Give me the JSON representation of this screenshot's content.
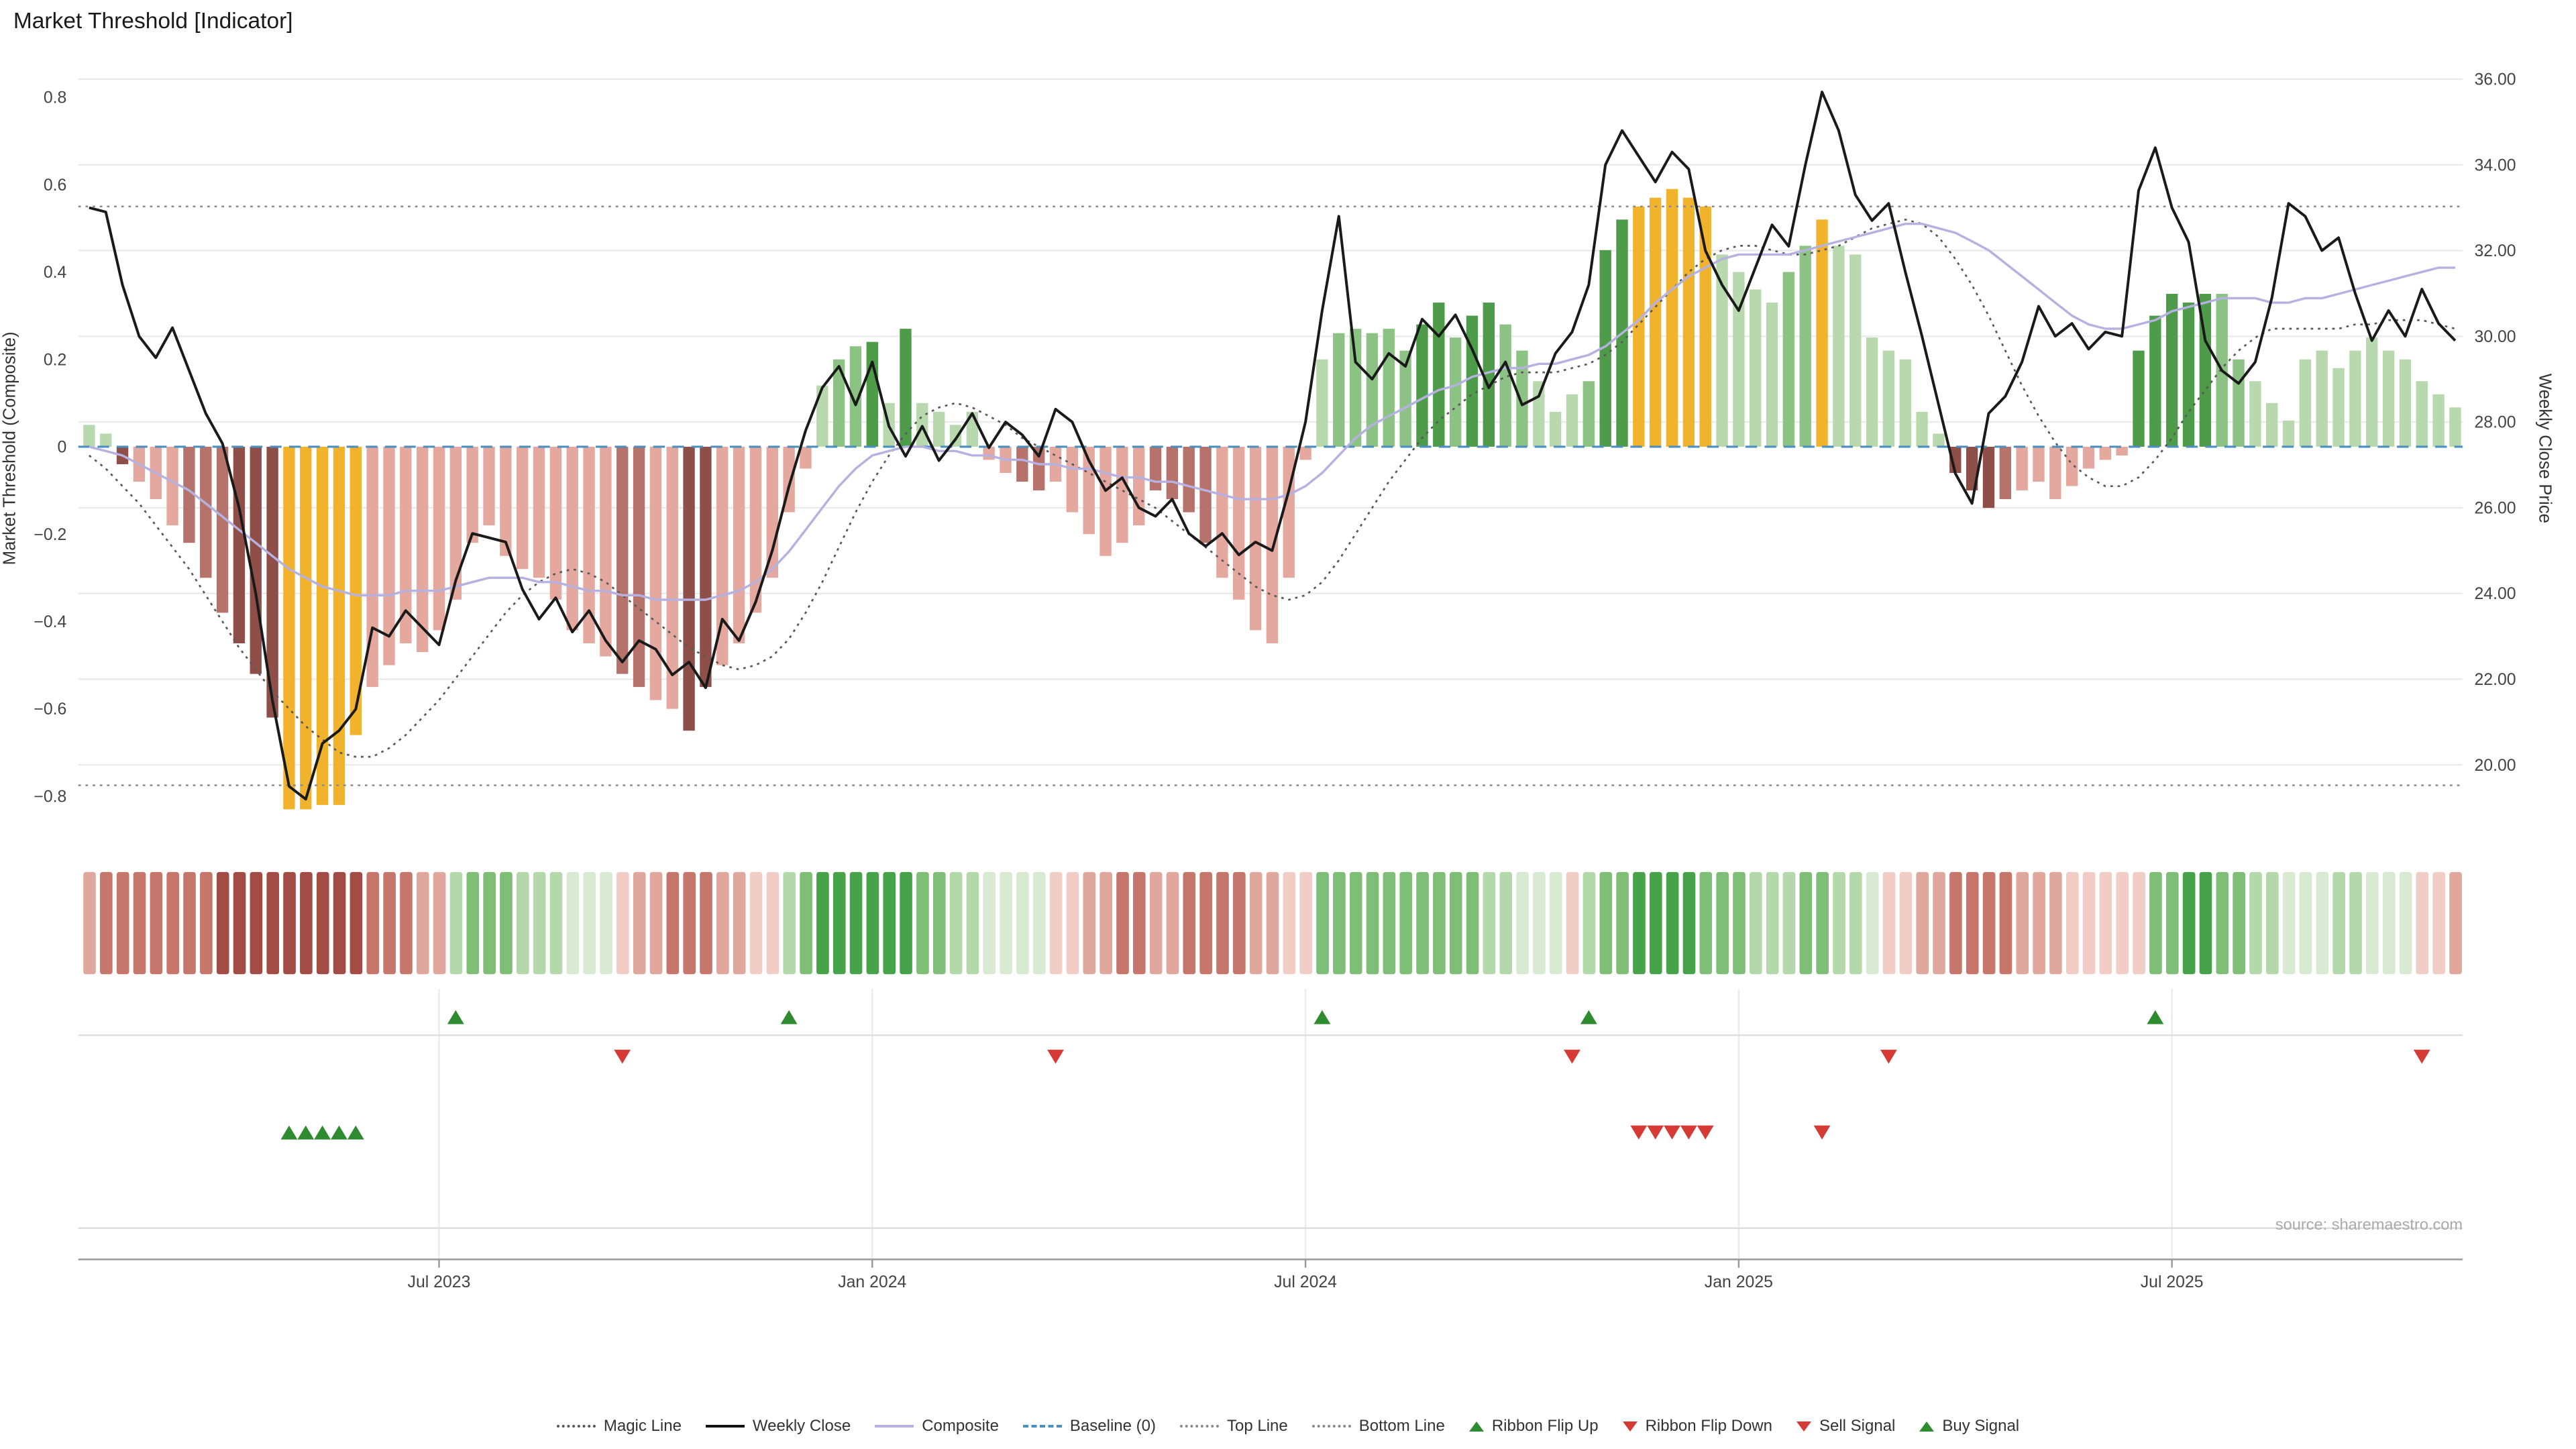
{
  "title": "Market Threshold [Indicator]",
  "source_note": "source: sharemaestro.com",
  "axes": {
    "left_label": "Market Threshold (Composite)",
    "right_label": "Weekly Close Price",
    "left_ticks": [
      {
        "v": 0.8,
        "label": "0.8"
      },
      {
        "v": 0.6,
        "label": "0.6"
      },
      {
        "v": 0.4,
        "label": "0.4"
      },
      {
        "v": 0.2,
        "label": "0.2"
      },
      {
        "v": 0.0,
        "label": "0"
      },
      {
        "v": -0.2,
        "label": "−0.2"
      },
      {
        "v": -0.4,
        "label": "−0.4"
      },
      {
        "v": -0.6,
        "label": "−0.6"
      },
      {
        "v": -0.8,
        "label": "−0.8"
      }
    ],
    "right_ticks": [
      {
        "v": 36,
        "label": "36.00"
      },
      {
        "v": 34,
        "label": "34.00"
      },
      {
        "v": 32,
        "label": "32.00"
      },
      {
        "v": 30,
        "label": "30.00"
      },
      {
        "v": 28,
        "label": "28.00"
      },
      {
        "v": 26,
        "label": "26.00"
      },
      {
        "v": 24,
        "label": "24.00"
      },
      {
        "v": 22,
        "label": "22.00"
      },
      {
        "v": 20,
        "label": "20.00"
      }
    ],
    "x_ticks": [
      {
        "i": 21,
        "label": "Jul 2023"
      },
      {
        "i": 47,
        "label": "Jan 2024"
      },
      {
        "i": 73,
        "label": "Jul 2024"
      },
      {
        "i": 99,
        "label": "Jan 2025"
      },
      {
        "i": 125,
        "label": "Jul 2025"
      }
    ]
  },
  "chart_data": [
    {
      "type": "bar",
      "name": "market_threshold",
      "axis": "left",
      "ylim": [
        -0.9,
        0.89
      ],
      "baseline": 0,
      "values": [
        0.05,
        0.03,
        -0.04,
        -0.08,
        -0.12,
        -0.18,
        -0.22,
        -0.3,
        -0.38,
        -0.45,
        -0.52,
        -0.62,
        -0.83,
        -0.83,
        -0.82,
        -0.82,
        -0.66,
        -0.55,
        -0.5,
        -0.45,
        -0.47,
        -0.42,
        -0.35,
        -0.22,
        -0.18,
        -0.25,
        -0.28,
        -0.3,
        -0.35,
        -0.42,
        -0.45,
        -0.48,
        -0.52,
        -0.55,
        -0.58,
        -0.6,
        -0.65,
        -0.55,
        -0.5,
        -0.45,
        -0.38,
        -0.3,
        -0.15,
        -0.05,
        0.14,
        0.2,
        0.23,
        0.24,
        0.1,
        0.27,
        0.1,
        0.08,
        0.05,
        0.08,
        -0.03,
        -0.06,
        -0.08,
        -0.1,
        -0.08,
        -0.15,
        -0.2,
        -0.25,
        -0.22,
        -0.18,
        -0.1,
        -0.12,
        -0.15,
        -0.22,
        -0.3,
        -0.35,
        -0.42,
        -0.45,
        -0.3,
        -0.03,
        0.2,
        0.26,
        0.27,
        0.26,
        0.27,
        0.22,
        0.28,
        0.33,
        0.25,
        0.3,
        0.33,
        0.28,
        0.22,
        0.15,
        0.08,
        0.12,
        0.15,
        0.45,
        0.52,
        0.55,
        0.57,
        0.59,
        0.57,
        0.55,
        0.44,
        0.4,
        0.36,
        0.33,
        0.4,
        0.46,
        0.52,
        0.46,
        0.44,
        0.25,
        0.22,
        0.2,
        0.08,
        0.03,
        -0.06,
        -0.1,
        -0.14,
        -0.12,
        -0.1,
        -0.08,
        -0.12,
        -0.09,
        -0.05,
        -0.03,
        -0.02,
        0.22,
        0.3,
        0.35,
        0.33,
        0.35,
        0.35,
        0.2,
        0.15,
        0.1,
        0.06,
        0.2,
        0.22,
        0.18,
        0.22,
        0.25,
        0.22,
        0.2,
        0.15,
        0.12,
        0.09
      ],
      "colors": [
        "lg",
        "lg",
        "dr",
        "pk",
        "pk",
        "pk",
        "mr",
        "mr",
        "mr",
        "dr",
        "dr",
        "dr",
        "gd",
        "gd",
        "gd",
        "gd",
        "gd",
        "pk",
        "pk",
        "pk",
        "pk",
        "pk",
        "pk",
        "pk",
        "pk",
        "pk",
        "pk",
        "pk",
        "pk",
        "pk",
        "pk",
        "pk",
        "mr",
        "mr",
        "pk",
        "pk",
        "dr",
        "dr",
        "pk",
        "pk",
        "pk",
        "pk",
        "pk",
        "pk",
        "lg",
        "mg",
        "mg",
        "dg",
        "lg",
        "dg",
        "lg",
        "lg",
        "lg",
        "lg",
        "pk",
        "pk",
        "mr",
        "mr",
        "pk",
        "pk",
        "pk",
        "pk",
        "pk",
        "pk",
        "mr",
        "mr",
        "mr",
        "mr",
        "pk",
        "pk",
        "pk",
        "pk",
        "pk",
        "pk",
        "lg",
        "mg",
        "mg",
        "mg",
        "mg",
        "mg",
        "dg",
        "dg",
        "mg",
        "dg",
        "dg",
        "mg",
        "mg",
        "lg",
        "lg",
        "lg",
        "mg",
        "dg",
        "dg",
        "gd",
        "gd",
        "gd",
        "gd",
        "gd",
        "lg",
        "lg",
        "lg",
        "lg",
        "mg",
        "mg",
        "gd",
        "lg",
        "lg",
        "lg",
        "lg",
        "lg",
        "lg",
        "lg",
        "dr",
        "dr",
        "dr",
        "mr",
        "pk",
        "pk",
        "pk",
        "pk",
        "pk",
        "pk",
        "pk",
        "dg",
        "dg",
        "dg",
        "dg",
        "dg",
        "mg",
        "mg",
        "lg",
        "lg",
        "lg",
        "lg",
        "lg",
        "lg",
        "lg",
        "lg",
        "lg",
        "lg",
        "lg",
        "lg",
        "lg"
      ],
      "palette": {
        "dr": "#8f4f49",
        "mr": "#b5736b",
        "pk": "#e4a89e",
        "gd": "#f2b32c",
        "lg": "#b7d9ad",
        "mg": "#8cc384",
        "dg": "#4e9b49"
      }
    },
    {
      "type": "line",
      "name": "weekly_close",
      "axis": "right",
      "ylim": [
        18.2,
        36.5
      ],
      "color": "#1a1a1a",
      "values": [
        33.0,
        32.9,
        31.2,
        30.0,
        29.5,
        30.2,
        29.2,
        28.2,
        27.5,
        26.0,
        24.0,
        21.5,
        19.5,
        19.2,
        20.5,
        20.8,
        21.3,
        23.2,
        23.0,
        23.6,
        23.2,
        22.8,
        24.3,
        25.4,
        25.3,
        25.2,
        24.1,
        23.4,
        23.9,
        23.1,
        23.6,
        22.9,
        22.4,
        22.9,
        22.7,
        22.1,
        22.4,
        21.8,
        23.4,
        22.9,
        23.8,
        25.0,
        26.5,
        27.8,
        28.8,
        29.3,
        28.4,
        29.4,
        27.9,
        27.2,
        27.9,
        27.1,
        27.6,
        28.2,
        27.4,
        28.0,
        27.7,
        27.2,
        28.3,
        28.0,
        27.1,
        26.4,
        26.7,
        26.0,
        25.8,
        26.2,
        25.4,
        25.1,
        25.4,
        24.9,
        25.2,
        25.0,
        26.4,
        28.0,
        30.6,
        32.8,
        29.4,
        29.0,
        29.6,
        29.3,
        30.4,
        30.0,
        30.5,
        29.7,
        28.8,
        29.4,
        28.4,
        28.6,
        29.6,
        30.1,
        31.2,
        34.0,
        34.8,
        34.2,
        33.6,
        34.3,
        33.9,
        32.0,
        31.2,
        30.6,
        31.6,
        32.6,
        32.1,
        34.0,
        35.7,
        34.8,
        33.3,
        32.7,
        33.1,
        31.5,
        30.0,
        28.4,
        26.8,
        26.1,
        28.2,
        28.6,
        29.4,
        30.7,
        30.0,
        30.3,
        29.7,
        30.1,
        30.0,
        33.4,
        34.4,
        33.0,
        32.2,
        29.9,
        29.2,
        28.9,
        29.4,
        30.9,
        33.1,
        32.8,
        32.0,
        32.3,
        31.0,
        29.9,
        30.6,
        30.0,
        31.1,
        30.3,
        29.9
      ]
    },
    {
      "type": "line",
      "name": "composite",
      "axis": "left",
      "color": "#b5b2e2",
      "values": [
        0.0,
        -0.01,
        -0.02,
        -0.04,
        -0.06,
        -0.08,
        -0.1,
        -0.13,
        -0.16,
        -0.19,
        -0.22,
        -0.25,
        -0.28,
        -0.3,
        -0.32,
        -0.33,
        -0.34,
        -0.34,
        -0.34,
        -0.33,
        -0.33,
        -0.33,
        -0.32,
        -0.31,
        -0.3,
        -0.3,
        -0.3,
        -0.31,
        -0.31,
        -0.32,
        -0.33,
        -0.33,
        -0.34,
        -0.34,
        -0.35,
        -0.35,
        -0.35,
        -0.35,
        -0.34,
        -0.33,
        -0.31,
        -0.28,
        -0.24,
        -0.19,
        -0.14,
        -0.09,
        -0.05,
        -0.02,
        -0.01,
        0.0,
        0.0,
        -0.01,
        -0.01,
        -0.02,
        -0.02,
        -0.03,
        -0.03,
        -0.04,
        -0.04,
        -0.05,
        -0.05,
        -0.06,
        -0.07,
        -0.07,
        -0.08,
        -0.08,
        -0.09,
        -0.1,
        -0.11,
        -0.12,
        -0.12,
        -0.12,
        -0.11,
        -0.09,
        -0.06,
        -0.02,
        0.02,
        0.05,
        0.07,
        0.09,
        0.11,
        0.13,
        0.14,
        0.16,
        0.17,
        0.18,
        0.18,
        0.19,
        0.19,
        0.2,
        0.21,
        0.23,
        0.26,
        0.29,
        0.33,
        0.36,
        0.39,
        0.41,
        0.43,
        0.44,
        0.44,
        0.44,
        0.44,
        0.45,
        0.46,
        0.47,
        0.48,
        0.49,
        0.5,
        0.51,
        0.51,
        0.5,
        0.49,
        0.47,
        0.45,
        0.42,
        0.39,
        0.36,
        0.33,
        0.3,
        0.28,
        0.27,
        0.27,
        0.28,
        0.29,
        0.31,
        0.32,
        0.33,
        0.34,
        0.34,
        0.34,
        0.33,
        0.33,
        0.34,
        0.34,
        0.35,
        0.36,
        0.37,
        0.38,
        0.39,
        0.4,
        0.41,
        0.41
      ]
    },
    {
      "type": "line",
      "name": "magic_line",
      "axis": "left",
      "style": "dotted",
      "color": "#595959",
      "values": [
        -0.02,
        -0.05,
        -0.09,
        -0.13,
        -0.18,
        -0.23,
        -0.28,
        -0.34,
        -0.4,
        -0.46,
        -0.51,
        -0.56,
        -0.6,
        -0.64,
        -0.67,
        -0.7,
        -0.71,
        -0.71,
        -0.69,
        -0.66,
        -0.62,
        -0.58,
        -0.53,
        -0.48,
        -0.43,
        -0.38,
        -0.34,
        -0.31,
        -0.29,
        -0.28,
        -0.29,
        -0.31,
        -0.34,
        -0.37,
        -0.4,
        -0.43,
        -0.46,
        -0.48,
        -0.5,
        -0.51,
        -0.5,
        -0.48,
        -0.44,
        -0.38,
        -0.31,
        -0.23,
        -0.15,
        -0.08,
        -0.02,
        0.03,
        0.07,
        0.09,
        0.1,
        0.09,
        0.07,
        0.05,
        0.02,
        0.0,
        -0.02,
        -0.04,
        -0.06,
        -0.08,
        -0.1,
        -0.12,
        -0.14,
        -0.17,
        -0.2,
        -0.23,
        -0.26,
        -0.29,
        -0.32,
        -0.34,
        -0.35,
        -0.34,
        -0.31,
        -0.26,
        -0.2,
        -0.14,
        -0.08,
        -0.03,
        0.02,
        0.06,
        0.09,
        0.12,
        0.14,
        0.16,
        0.17,
        0.17,
        0.17,
        0.18,
        0.19,
        0.21,
        0.24,
        0.28,
        0.32,
        0.36,
        0.4,
        0.43,
        0.45,
        0.46,
        0.46,
        0.45,
        0.44,
        0.44,
        0.45,
        0.46,
        0.48,
        0.5,
        0.51,
        0.52,
        0.51,
        0.48,
        0.43,
        0.37,
        0.3,
        0.22,
        0.14,
        0.07,
        0.01,
        -0.04,
        -0.07,
        -0.09,
        -0.09,
        -0.07,
        -0.03,
        0.02,
        0.08,
        0.13,
        0.18,
        0.22,
        0.25,
        0.27,
        0.27,
        0.27,
        0.27,
        0.27,
        0.28,
        0.28,
        0.29,
        0.29,
        0.29,
        0.28,
        0.27
      ]
    },
    {
      "type": "line",
      "name": "top_line",
      "axis": "left",
      "style": "dotted",
      "value": 0.55,
      "color": "#8a8a8a"
    },
    {
      "type": "line",
      "name": "bottom_line",
      "axis": "left",
      "style": "dotted",
      "value": -0.775,
      "color": "#8a8a8a"
    },
    {
      "type": "line",
      "name": "baseline",
      "axis": "left",
      "style": "dashed",
      "value": 0,
      "color": "#4a8fc0"
    },
    {
      "type": "heatmap",
      "name": "ribbon",
      "cells": [
        "r1",
        "r2",
        "r2",
        "r2",
        "r2",
        "r2",
        "r2",
        "r2",
        "r3",
        "r3",
        "r3",
        "r3",
        "r3",
        "r3",
        "r3",
        "r3",
        "r3",
        "r2",
        "r2",
        "r2",
        "r1",
        "r1",
        "g1",
        "g2",
        "g2",
        "g2",
        "g1",
        "g1",
        "g1",
        "g0",
        "g0",
        "g0",
        "r0",
        "r1",
        "r1",
        "r2",
        "r2",
        "r2",
        "r1",
        "r1",
        "r0",
        "r0",
        "g1",
        "g2",
        "g3",
        "g3",
        "g3",
        "g3",
        "g3",
        "g3",
        "g2",
        "g2",
        "g1",
        "g1",
        "g0",
        "g0",
        "g0",
        "g0",
        "r0",
        "r0",
        "r1",
        "r1",
        "r2",
        "r2",
        "r1",
        "r1",
        "r2",
        "r2",
        "r2",
        "r2",
        "r1",
        "r1",
        "r0",
        "r0",
        "g2",
        "g2",
        "g2",
        "g2",
        "g2",
        "g2",
        "g2",
        "g2",
        "g2",
        "g2",
        "g1",
        "g1",
        "g0",
        "g0",
        "g0",
        "r0",
        "g1",
        "g2",
        "g2",
        "g3",
        "g3",
        "g3",
        "g3",
        "g2",
        "g2",
        "g2",
        "g1",
        "g1",
        "g1",
        "g2",
        "g2",
        "g1",
        "g1",
        "g0",
        "r0",
        "r0",
        "r1",
        "r1",
        "r2",
        "r2",
        "r2",
        "r2",
        "r1",
        "r1",
        "r1",
        "r0",
        "r0",
        "r0",
        "r0",
        "r0",
        "g2",
        "g2",
        "g3",
        "g3",
        "g2",
        "g2",
        "g1",
        "g1",
        "g0",
        "g0",
        "g0",
        "g1",
        "g1",
        "g0",
        "g0",
        "g0",
        "r0",
        "r0",
        "r1"
      ],
      "palette": {
        "r3": "#a34b45",
        "r2": "#c7766c",
        "r1": "#e0a79d",
        "r0": "#f2cdc6",
        "g0": "#d8ead2",
        "g1": "#b3d8a9",
        "g2": "#7fbe77",
        "g3": "#46a34a"
      }
    },
    {
      "type": "scatter",
      "name": "signals",
      "ribbon_flip_up": [
        22,
        42,
        74,
        90,
        124
      ],
      "ribbon_flip_down": [
        32,
        58,
        89,
        108,
        140
      ],
      "buy": [
        12,
        13,
        14,
        15,
        16
      ],
      "sell": [
        93,
        94,
        95,
        96,
        97,
        104
      ],
      "colors": {
        "up": "#2f8b2f",
        "down": "#d63a34"
      }
    }
  ],
  "legend": {
    "items": [
      {
        "label": "Magic Line"
      },
      {
        "label": "Weekly Close"
      },
      {
        "label": "Composite"
      },
      {
        "label": "Baseline (0)"
      },
      {
        "label": "Top Line"
      },
      {
        "label": "Bottom Line"
      },
      {
        "label": "Ribbon Flip Up"
      },
      {
        "label": "Ribbon Flip Down"
      },
      {
        "label": "Sell Signal"
      },
      {
        "label": "Buy Signal"
      }
    ]
  }
}
